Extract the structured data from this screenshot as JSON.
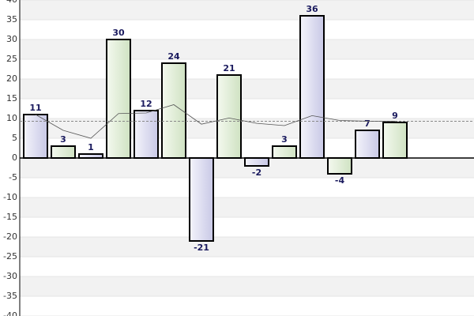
{
  "chart_data": {
    "type": "bar",
    "values": [
      11,
      3,
      1,
      30,
      12,
      24,
      -21,
      21,
      -2,
      3,
      36,
      -4,
      7,
      9
    ],
    "bar_colors": [
      "#d8d8ee",
      "#dcead2"
    ],
    "line_values": [
      11,
      7,
      5,
      11.25,
      11.4,
      13.5,
      8.57,
      10.13,
      8.78,
      8.2,
      10.73,
      9.5,
      9.31,
      9.29
    ],
    "average": 9.29,
    "ylim": [
      -40,
      40
    ],
    "yticks": [
      -40,
      -35,
      -30,
      -25,
      -20,
      -15,
      -10,
      -5,
      0,
      5,
      10,
      15,
      20,
      25,
      30,
      35,
      40
    ],
    "grid": true
  }
}
